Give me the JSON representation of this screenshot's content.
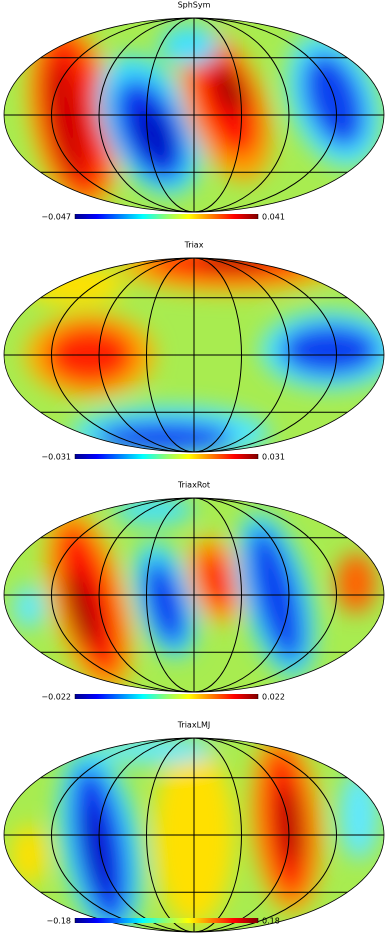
{
  "chart_data": [
    {
      "type": "mollweide",
      "title": "SphSym",
      "clim": [
        -0.047,
        0.041
      ],
      "cticks": [
        {
          "value": -0.047,
          "label": "−0.047"
        },
        {
          "value": 0.041,
          "label": "0.041"
        }
      ]
    },
    {
      "type": "mollweide",
      "title": "Triax",
      "clim": [
        -0.031,
        0.031
      ],
      "cticks": [
        {
          "value": -0.031,
          "label": "−0.031"
        },
        {
          "value": 0.031,
          "label": "0.031"
        }
      ]
    },
    {
      "type": "mollweide",
      "title": "TriaxRot",
      "clim": [
        -0.022,
        0.022
      ],
      "cticks": [
        {
          "value": -0.022,
          "label": "−0.022"
        },
        {
          "value": 0.022,
          "label": "0.022"
        }
      ]
    },
    {
      "type": "mollweide",
      "title": "TriaxLMJ",
      "clim": [
        -0.18,
        0.18
      ],
      "cticks": [
        {
          "value": -0.18,
          "label": "−0.18"
        },
        {
          "value": 0.18,
          "label": "0.18"
        }
      ]
    }
  ]
}
